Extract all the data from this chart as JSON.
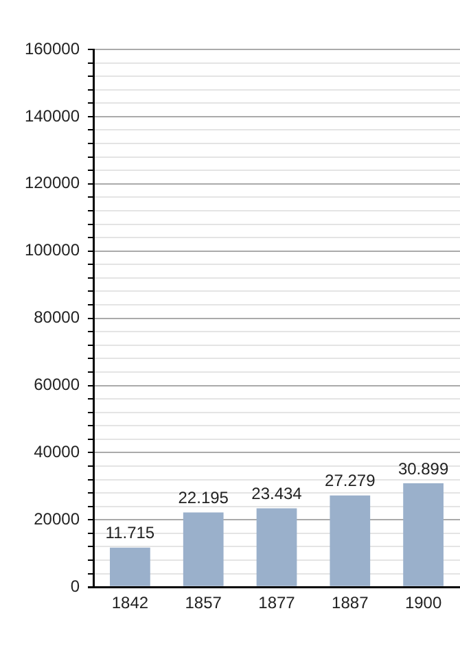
{
  "chart_data": {
    "type": "bar",
    "categories": [
      "1842",
      "1857",
      "1877",
      "1887",
      "1900"
    ],
    "values": [
      11715,
      22195,
      23434,
      27279,
      30899
    ],
    "value_labels": [
      "11.715",
      "22.195",
      "23.434",
      "27.279",
      "30.899"
    ],
    "color": "#9ab0cb",
    "ylim": [
      0,
      160000
    ],
    "yticks": [
      0,
      {
        "value": 4000,
        "label": null
      },
      {
        "value": 8000,
        "label": null
      },
      {
        "value": 12000,
        "label": null
      },
      {
        "value": 16000,
        "label": null
      },
      20000,
      {
        "value": 24000,
        "label": null
      },
      {
        "value": 28000,
        "label": null
      },
      {
        "value": 32000,
        "label": null
      },
      {
        "value": 36000,
        "label": null
      },
      40000,
      {
        "value": 44000,
        "label": null
      },
      {
        "value": 48000,
        "label": null
      },
      {
        "value": 52000,
        "label": null
      },
      {
        "value": 56000,
        "label": null
      },
      60000,
      {
        "value": 64000,
        "label": null
      },
      {
        "value": 68000,
        "label": null
      },
      {
        "value": 72000,
        "label": null
      },
      {
        "value": 76000,
        "label": null
      },
      80000,
      {
        "value": 84000,
        "label": null
      },
      {
        "value": 88000,
        "label": null
      },
      {
        "value": 92000,
        "label": null
      },
      {
        "value": 96000,
        "label": null
      },
      100000,
      {
        "value": 104000,
        "label": null
      },
      {
        "value": 108000,
        "label": null
      },
      {
        "value": 112000,
        "label": null
      },
      {
        "value": 116000,
        "label": null
      },
      120000,
      {
        "value": 124000,
        "label": null
      },
      {
        "value": 128000,
        "label": null
      },
      {
        "value": 132000,
        "label": null
      },
      {
        "value": 136000,
        "label": null
      },
      140000,
      {
        "value": 144000,
        "label": null
      },
      {
        "value": 148000,
        "label": null
      },
      {
        "value": 152000,
        "label": null
      },
      {
        "value": 156000,
        "label": null
      },
      160000
    ],
    "grid": true
  }
}
